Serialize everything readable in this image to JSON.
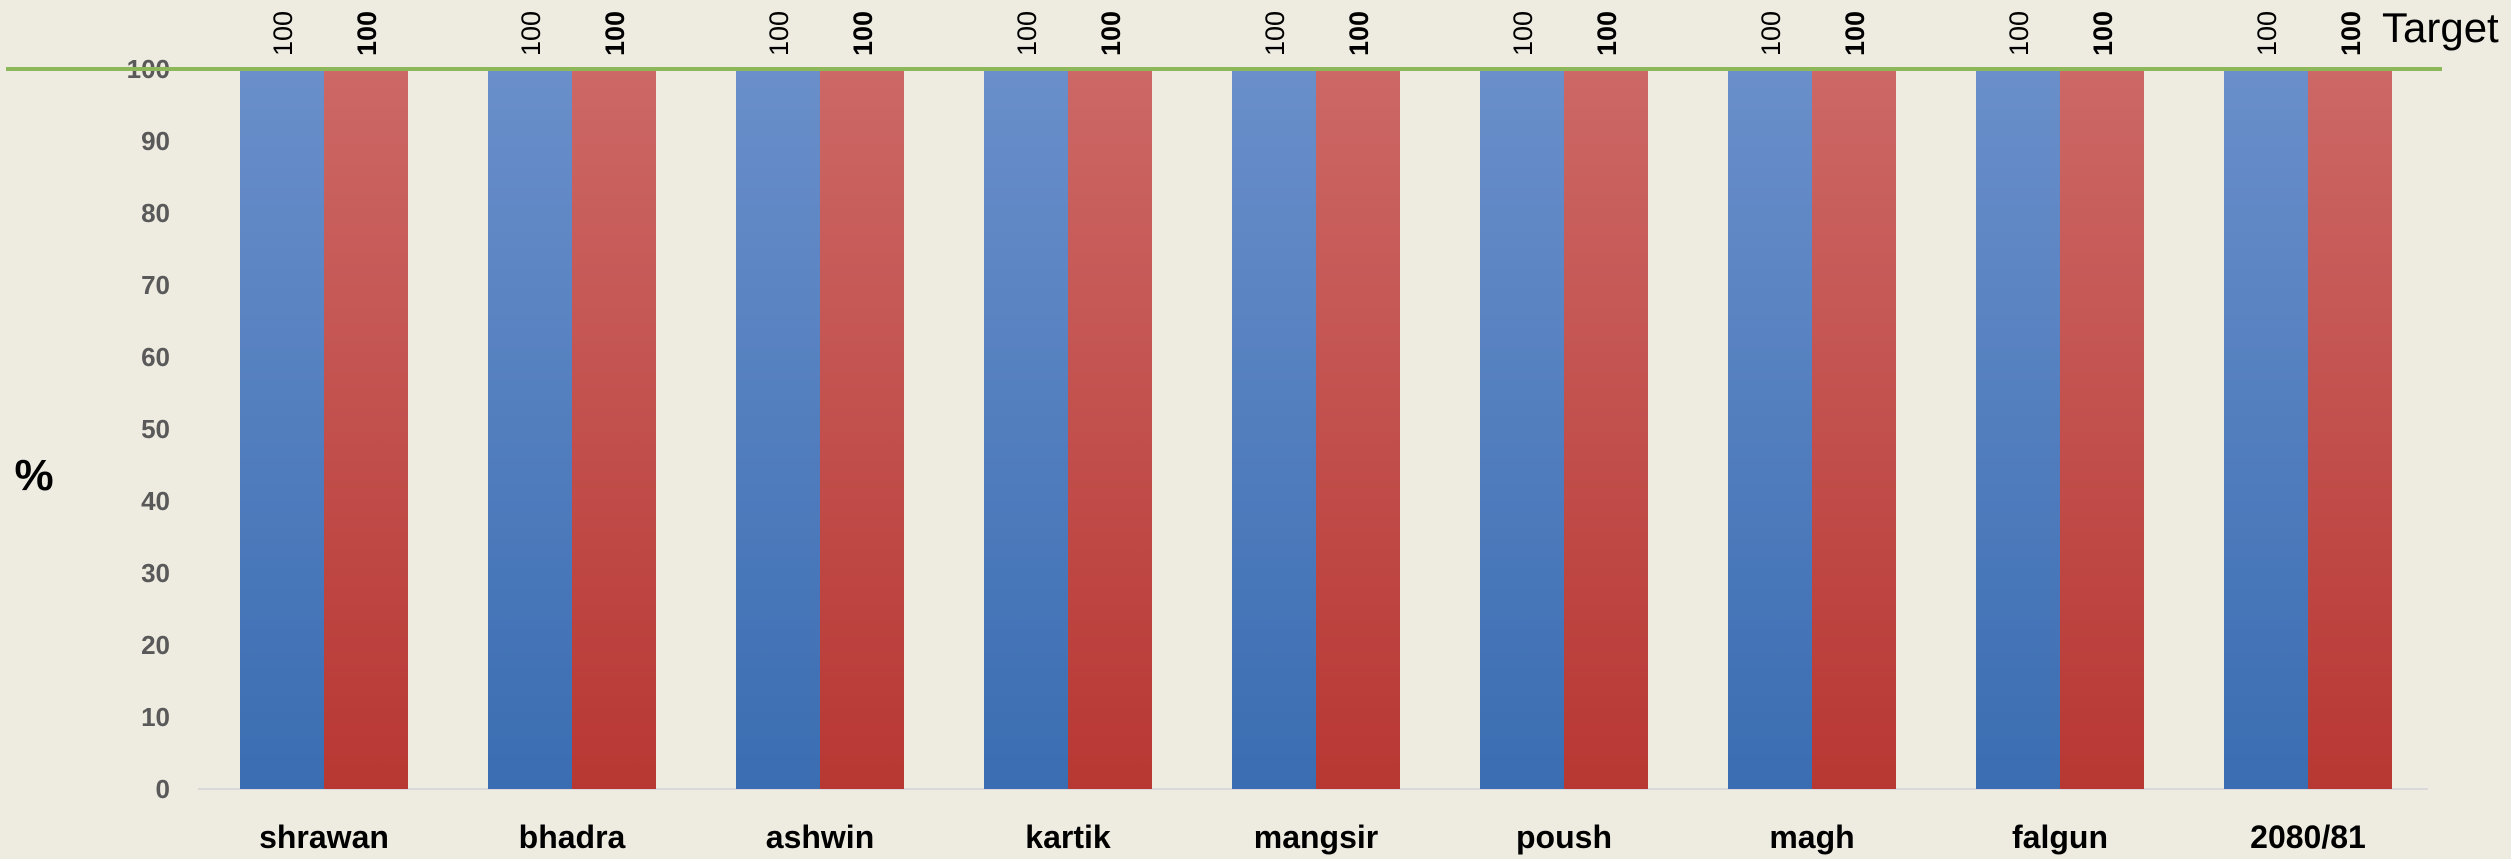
{
  "colors": {
    "background": "#eeebe1",
    "series_a_top": "#6a8fca",
    "series_a_bottom": "#3a6db2",
    "series_b_top": "#cc6866",
    "series_b_bottom": "#b83733",
    "target_line": "#8db85a",
    "axis_text": "#595959",
    "label_text": "#000000"
  },
  "chart_data": {
    "type": "bar",
    "categories": [
      "shrawan",
      "bhadra",
      "ashwin",
      "kartik",
      "mangsir",
      "poush",
      "magh",
      "falgun",
      "2080/81"
    ],
    "series": [
      {
        "values": [
          100,
          100,
          100,
          100,
          100,
          100,
          100,
          100,
          100
        ]
      },
      {
        "values": [
          100,
          100,
          100,
          100,
          100,
          100,
          100,
          100,
          100
        ]
      }
    ],
    "target": {
      "label": "Target",
      "value": 100
    },
    "ylabel": "%",
    "xlabel": "",
    "ylim": [
      0,
      100
    ],
    "yticks": [
      0,
      10,
      20,
      30,
      40,
      50,
      60,
      70,
      80,
      90,
      100
    ],
    "grid": false,
    "legend": "none"
  }
}
